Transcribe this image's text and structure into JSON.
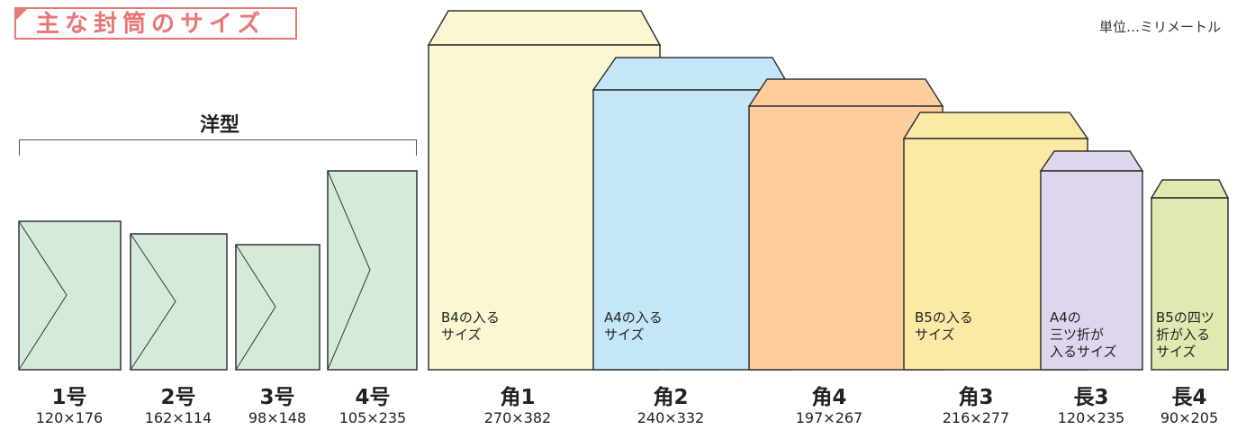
{
  "title": "主な封筒のサイズ",
  "unit_note": "単位…ミリメートル",
  "group_label": "洋型",
  "colors": {
    "title_accent": "#ea7575",
    "yougata": "#d6eadc",
    "kaku1": "#fbf7d2",
    "kaku2": "#c5e6f8",
    "kaku4": "#fdcd9c",
    "kaku3": "#fde9a6",
    "naga3": "#dfd5ec",
    "naga4": "#dfeab0"
  },
  "envelopes": [
    {
      "name": "1号",
      "size": "120×176",
      "label": ""
    },
    {
      "name": "2号",
      "size": "162×114",
      "label": ""
    },
    {
      "name": "3号",
      "size": "98×148",
      "label": ""
    },
    {
      "name": "4号",
      "size": "105×235",
      "label": ""
    },
    {
      "name": "角1",
      "size": "270×382",
      "label": "B4の入る\nサイズ"
    },
    {
      "name": "角2",
      "size": "240×332",
      "label": "A4の入る\nサイズ"
    },
    {
      "name": "角4",
      "size": "197×267",
      "label": ""
    },
    {
      "name": "角3",
      "size": "216×277",
      "label": "B5の入る\nサイズ"
    },
    {
      "name": "長3",
      "size": "120×235",
      "label": "A4の\n三ツ折が\n入るサイズ"
    },
    {
      "name": "長4",
      "size": "90×205",
      "label": "B5の四ツ\n折が入る\nサイズ"
    }
  ]
}
